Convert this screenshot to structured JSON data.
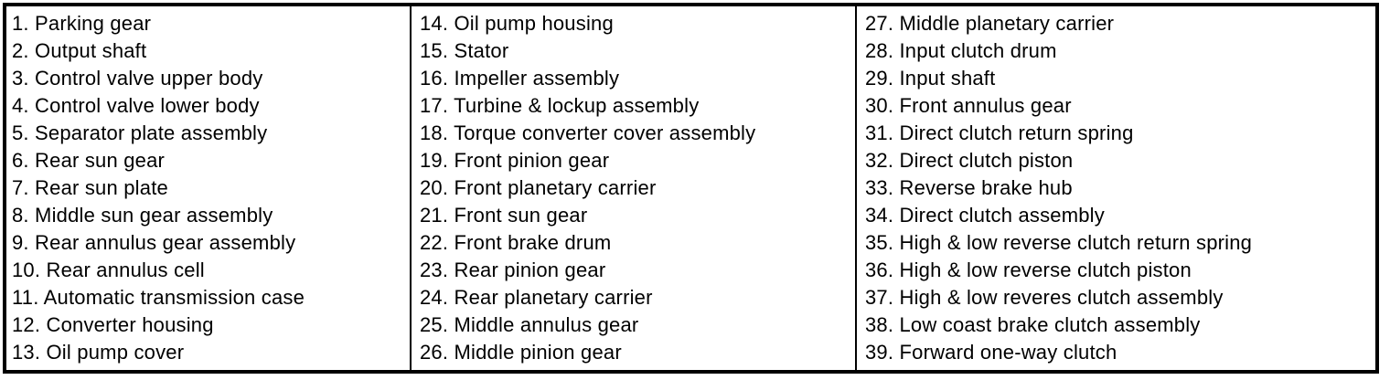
{
  "colors": {
    "background": "#ffffff",
    "border": "#000000",
    "text": "#000000"
  },
  "legend": {
    "description_visible_content": "numbered parts legend table, three columns, items 1-39",
    "columns": [
      {
        "items": [
          "1. Parking gear",
          "2. Output shaft",
          "3. Control valve upper body",
          "4. Control valve lower body",
          "5. Separator plate assembly",
          "6. Rear sun gear",
          "7. Rear sun plate",
          "8. Middle sun gear assembly",
          "9. Rear annulus gear assembly",
          "10. Rear annulus cell",
          "11. Automatic transmission case",
          "12. Converter housing",
          "13. Oil pump cover"
        ]
      },
      {
        "items": [
          "14. Oil pump housing",
          "15. Stator",
          "16. Impeller assembly",
          "17. Turbine & lockup assembly",
          "18. Torque converter cover assembly",
          "19. Front pinion gear",
          "20. Front planetary carrier",
          "21. Front sun gear",
          "22. Front brake drum",
          "23. Rear pinion gear",
          "24. Rear planetary carrier",
          "25. Middle annulus gear",
          "26. Middle pinion gear"
        ]
      },
      {
        "items": [
          "27. Middle planetary carrier",
          "28. Input clutch drum",
          "29. Input shaft",
          "30. Front annulus gear",
          "31. Direct clutch return spring",
          "32. Direct clutch piston",
          "33. Reverse brake hub",
          "34. Direct clutch assembly",
          "35. High & low reverse clutch return spring",
          "36. High & low reverse clutch piston",
          "37. High & low reveres clutch assembly",
          "38. Low coast brake clutch assembly",
          "39. Forward one-way clutch"
        ]
      }
    ]
  }
}
